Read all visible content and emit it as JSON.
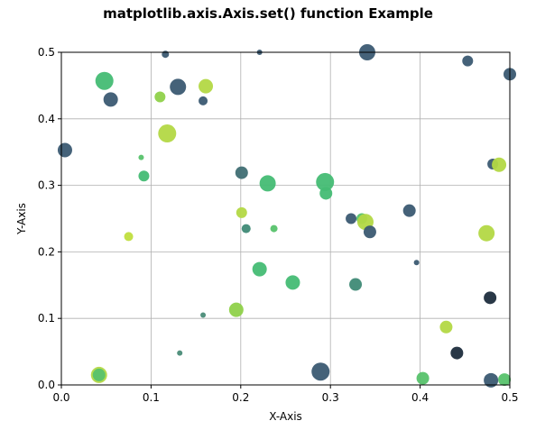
{
  "chart_data": {
    "type": "scatter",
    "title": "matplotlib.axis.Axis.set() function Example",
    "xlabel": "X-Axis",
    "ylabel": "Y-Axis",
    "xlim": [
      0.0,
      0.5
    ],
    "ylim": [
      0.0,
      0.5
    ],
    "xticks": [
      "0.0",
      "0.1",
      "0.2",
      "0.3",
      "0.4",
      "0.5"
    ],
    "yticks": [
      "0.0",
      "0.1",
      "0.2",
      "0.3",
      "0.4",
      "0.5"
    ],
    "grid": true,
    "colormap": "viridis",
    "points": [
      {
        "x": 0.004,
        "y": 0.353,
        "size": 8,
        "color": "#3b5a72"
      },
      {
        "x": 0.042,
        "y": 0.015,
        "size": 9,
        "color": "#b3d845"
      },
      {
        "x": 0.042,
        "y": 0.015,
        "size": 7,
        "color": "#57c26b"
      },
      {
        "x": 0.048,
        "y": 0.457,
        "size": 10,
        "color": "#44bc74"
      },
      {
        "x": 0.055,
        "y": 0.429,
        "size": 8,
        "color": "#3b5a72"
      },
      {
        "x": 0.075,
        "y": 0.223,
        "size": 5,
        "color": "#c0de3e"
      },
      {
        "x": 0.089,
        "y": 0.342,
        "size": 3,
        "color": "#57c26b"
      },
      {
        "x": 0.092,
        "y": 0.314,
        "size": 6,
        "color": "#44bc74"
      },
      {
        "x": 0.11,
        "y": 0.433,
        "size": 6,
        "color": "#8fd14a"
      },
      {
        "x": 0.116,
        "y": 0.497,
        "size": 4,
        "color": "#3b5a72"
      },
      {
        "x": 0.118,
        "y": 0.378,
        "size": 10,
        "color": "#b3d845"
      },
      {
        "x": 0.13,
        "y": 0.448,
        "size": 9,
        "color": "#3b5a72"
      },
      {
        "x": 0.132,
        "y": 0.048,
        "size": 3,
        "color": "#4a8c78"
      },
      {
        "x": 0.158,
        "y": 0.427,
        "size": 5,
        "color": "#3b5a72"
      },
      {
        "x": 0.158,
        "y": 0.105,
        "size": 3,
        "color": "#4a8c78"
      },
      {
        "x": 0.161,
        "y": 0.449,
        "size": 8,
        "color": "#b3d845"
      },
      {
        "x": 0.195,
        "y": 0.113,
        "size": 8,
        "color": "#8fd14a"
      },
      {
        "x": 0.201,
        "y": 0.319,
        "size": 7,
        "color": "#3f6e73"
      },
      {
        "x": 0.201,
        "y": 0.259,
        "size": 6,
        "color": "#b3d845"
      },
      {
        "x": 0.206,
        "y": 0.235,
        "size": 5,
        "color": "#3f8a76"
      },
      {
        "x": 0.221,
        "y": 0.174,
        "size": 8,
        "color": "#44bc74"
      },
      {
        "x": 0.23,
        "y": 0.303,
        "size": 9,
        "color": "#44bc74"
      },
      {
        "x": 0.237,
        "y": 0.235,
        "size": 4,
        "color": "#57c26b"
      },
      {
        "x": 0.258,
        "y": 0.154,
        "size": 8,
        "color": "#44bc74"
      },
      {
        "x": 0.289,
        "y": 0.02,
        "size": 10,
        "color": "#3b5a72"
      },
      {
        "x": 0.294,
        "y": 0.305,
        "size": 10,
        "color": "#44bc74"
      },
      {
        "x": 0.295,
        "y": 0.288,
        "size": 7,
        "color": "#44bc74"
      },
      {
        "x": 0.323,
        "y": 0.25,
        "size": 6,
        "color": "#3b5a72"
      },
      {
        "x": 0.328,
        "y": 0.151,
        "size": 7,
        "color": "#3f8a76"
      },
      {
        "x": 0.335,
        "y": 0.25,
        "size": 6,
        "color": "#57c26b"
      },
      {
        "x": 0.339,
        "y": 0.245,
        "size": 9,
        "color": "#b3d845"
      },
      {
        "x": 0.341,
        "y": 0.5,
        "size": 9,
        "color": "#3b5a72"
      },
      {
        "x": 0.344,
        "y": 0.23,
        "size": 7,
        "color": "#3b5a72"
      },
      {
        "x": 0.388,
        "y": 0.262,
        "size": 7,
        "color": "#3b5a72"
      },
      {
        "x": 0.396,
        "y": 0.184,
        "size": 3,
        "color": "#3b5a72"
      },
      {
        "x": 0.403,
        "y": 0.01,
        "size": 7,
        "color": "#57c26b"
      },
      {
        "x": 0.429,
        "y": 0.087,
        "size": 7,
        "color": "#b3d845"
      },
      {
        "x": 0.441,
        "y": 0.048,
        "size": 7,
        "color": "#1e2d3d"
      },
      {
        "x": 0.453,
        "y": 0.487,
        "size": 6,
        "color": "#3b5a72"
      },
      {
        "x": 0.474,
        "y": 0.228,
        "size": 9,
        "color": "#b3d845"
      },
      {
        "x": 0.478,
        "y": 0.131,
        "size": 7,
        "color": "#1e2d3d"
      },
      {
        "x": 0.479,
        "y": 0.007,
        "size": 8,
        "color": "#3b5a72"
      },
      {
        "x": 0.481,
        "y": 0.332,
        "size": 6,
        "color": "#3b5a72"
      },
      {
        "x": 0.488,
        "y": 0.331,
        "size": 8,
        "color": "#b3d845"
      },
      {
        "x": 0.494,
        "y": 0.008,
        "size": 7,
        "color": "#57c26b"
      },
      {
        "x": 0.5,
        "y": 0.467,
        "size": 7,
        "color": "#3b5a72"
      },
      {
        "x": 0.221,
        "y": 0.5,
        "size": 3,
        "color": "#3b5a72"
      }
    ]
  }
}
